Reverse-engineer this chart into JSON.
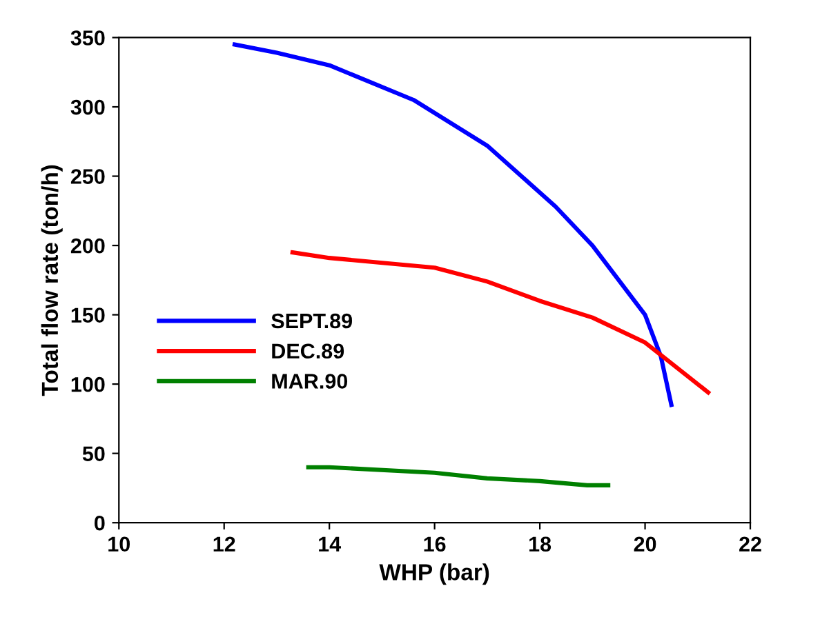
{
  "chart_data": {
    "type": "line",
    "xlabel": "WHP (bar)",
    "ylabel": "Total flow rate (ton/h)",
    "xlim": [
      10,
      22
    ],
    "xticks": [
      10,
      12,
      14,
      16,
      18,
      20,
      22
    ],
    "ylim": [
      0,
      350
    ],
    "yticks": [
      0,
      50,
      100,
      150,
      200,
      250,
      300,
      350
    ],
    "grid": false,
    "legend": "center left",
    "marker": "none",
    "line_style": "solid",
    "series": [
      {
        "name": "SEPT.89",
        "color": "#0000ff",
        "x": [
          12.2,
          13,
          14,
          15.6,
          17,
          18.3,
          19,
          20,
          20.3,
          20.5
        ],
        "values": [
          345,
          339,
          330,
          305,
          272,
          228,
          200,
          150,
          120,
          85
        ]
      },
      {
        "name": "DEC.89",
        "color": "#ff0000",
        "x": [
          13.3,
          14,
          16,
          17,
          18,
          19,
          20,
          21.2
        ],
        "values": [
          195,
          191,
          184,
          174,
          160,
          148,
          130,
          94
        ]
      },
      {
        "name": "MAR.90",
        "color": "#008000",
        "x": [
          13.6,
          14,
          16,
          17,
          18,
          18.9,
          19.3
        ],
        "values": [
          40,
          40,
          36,
          32,
          30,
          27,
          27
        ]
      }
    ]
  }
}
